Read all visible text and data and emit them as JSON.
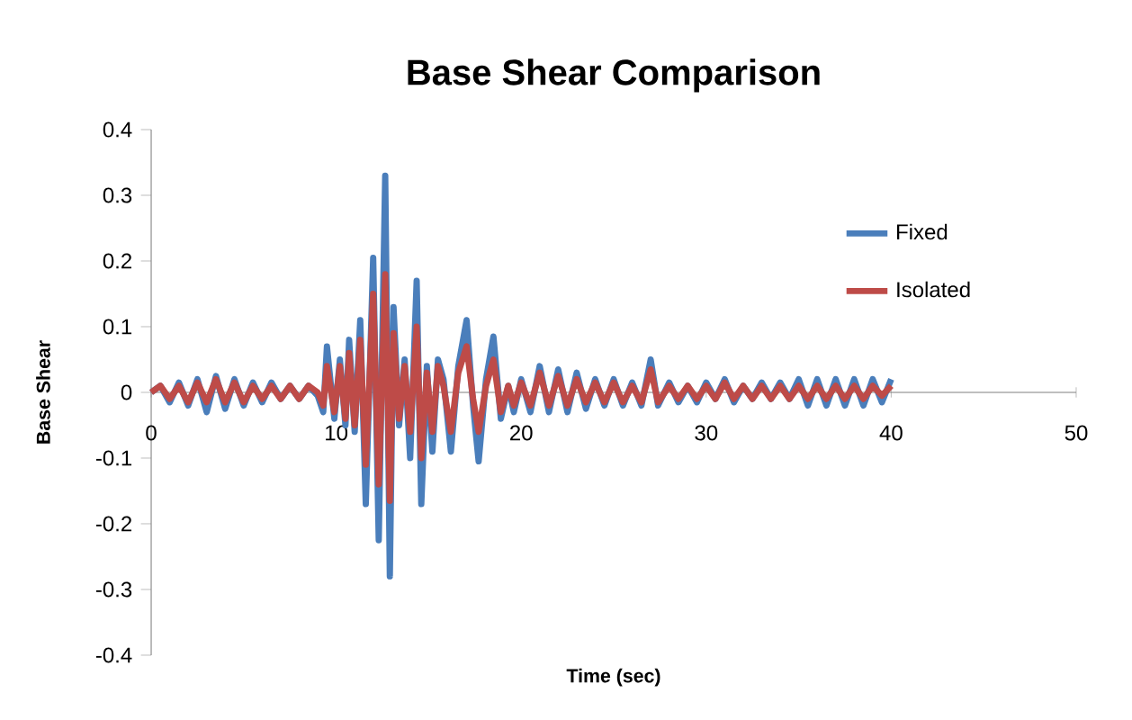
{
  "chart_data": {
    "type": "line",
    "title": "Base Shear Comparison",
    "xlabel": "Time (sec)",
    "ylabel": "Base Shear",
    "x": [
      0,
      0.5,
      1,
      1.5,
      2,
      2.5,
      3,
      3.5,
      4,
      4.5,
      5,
      5.5,
      6,
      6.5,
      7,
      7.5,
      8,
      8.5,
      9,
      9.3,
      9.5,
      9.9,
      10.2,
      10.5,
      10.7,
      11.0,
      11.3,
      11.6,
      12.0,
      12.3,
      12.65,
      12.9,
      13.1,
      13.4,
      13.7,
      14.0,
      14.35,
      14.6,
      14.9,
      15.2,
      15.5,
      15.8,
      16.2,
      16.6,
      17.05,
      17.4,
      17.7,
      18.1,
      18.5,
      18.9,
      19.3,
      19.6,
      20,
      20.5,
      21,
      21.5,
      22,
      22.5,
      23,
      23.5,
      24,
      24.5,
      25,
      25.5,
      26,
      26.5,
      27,
      27.4,
      28,
      28.5,
      29,
      29.5,
      30,
      30.5,
      31,
      31.5,
      32,
      32.5,
      33,
      33.5,
      34,
      34.5,
      35,
      35.5,
      36,
      36.5,
      37,
      37.5,
      38,
      38.5,
      39,
      39.5,
      40
    ],
    "series": [
      {
        "name": "Fixed",
        "color": "#4a7ebb",
        "values": [
          0,
          0.01,
          -0.015,
          0.015,
          -0.02,
          0.02,
          -0.03,
          0.025,
          -0.025,
          0.02,
          -0.02,
          0.015,
          -0.015,
          0.015,
          -0.01,
          0.01,
          -0.01,
          0.01,
          -0.005,
          -0.03,
          0.07,
          -0.04,
          0.05,
          -0.05,
          0.08,
          -0.06,
          0.11,
          -0.17,
          0.205,
          -0.225,
          0.33,
          -0.28,
          0.13,
          -0.05,
          0.05,
          -0.1,
          0.17,
          -0.17,
          0.04,
          -0.09,
          0.05,
          0.02,
          -0.09,
          0.04,
          0.11,
          -0.02,
          -0.105,
          0.02,
          0.085,
          -0.04,
          0.01,
          -0.03,
          0.02,
          -0.03,
          0.04,
          -0.03,
          0.035,
          -0.03,
          0.03,
          -0.025,
          0.02,
          -0.02,
          0.02,
          -0.02,
          0.015,
          -0.02,
          0.05,
          -0.02,
          0.015,
          -0.015,
          0.01,
          -0.015,
          0.015,
          -0.01,
          0.02,
          -0.015,
          0.01,
          -0.01,
          0.015,
          -0.01,
          0.015,
          -0.01,
          0.02,
          -0.02,
          0.02,
          -0.02,
          0.02,
          -0.02,
          0.02,
          -0.02,
          0.02,
          -0.015,
          0.02
        ]
      },
      {
        "name": "Isolated",
        "color": "#be4b48",
        "values": [
          0,
          0.01,
          -0.01,
          0.01,
          -0.015,
          0.015,
          -0.015,
          0.02,
          -0.015,
          0.015,
          -0.015,
          0.01,
          -0.01,
          0.01,
          -0.01,
          0.01,
          -0.01,
          0.01,
          0,
          -0.02,
          0.04,
          -0.03,
          0.04,
          -0.04,
          0.06,
          -0.05,
          0.08,
          -0.11,
          0.15,
          -0.14,
          0.18,
          -0.165,
          0.09,
          -0.04,
          0.04,
          -0.06,
          0.1,
          -0.1,
          0.03,
          -0.06,
          0.04,
          0.01,
          -0.06,
          0.03,
          0.07,
          -0.01,
          -0.06,
          0.01,
          0.05,
          -0.03,
          0.01,
          -0.02,
          0.015,
          -0.02,
          0.03,
          -0.02,
          0.025,
          -0.02,
          0.02,
          -0.015,
          0.015,
          -0.015,
          0.015,
          -0.015,
          0.01,
          -0.015,
          0.035,
          -0.015,
          0.01,
          -0.01,
          0.01,
          -0.01,
          0.01,
          -0.01,
          0.015,
          -0.01,
          0.01,
          -0.01,
          0.01,
          -0.01,
          0.01,
          -0.01,
          0.01,
          -0.01,
          0.01,
          -0.01,
          0.01,
          -0.01,
          0.01,
          -0.01,
          0.01,
          -0.005,
          0.01
        ]
      }
    ],
    "xlim": [
      0,
      50
    ],
    "xticks": [
      0,
      10,
      20,
      30,
      40,
      50
    ],
    "ylim": [
      -0.4,
      0.4
    ],
    "yticks": [
      -0.4,
      -0.3,
      -0.2,
      -0.1,
      0,
      0.1,
      0.2,
      0.3,
      0.4
    ],
    "legend": "top right",
    "marker": "none",
    "line_style": "solid"
  }
}
